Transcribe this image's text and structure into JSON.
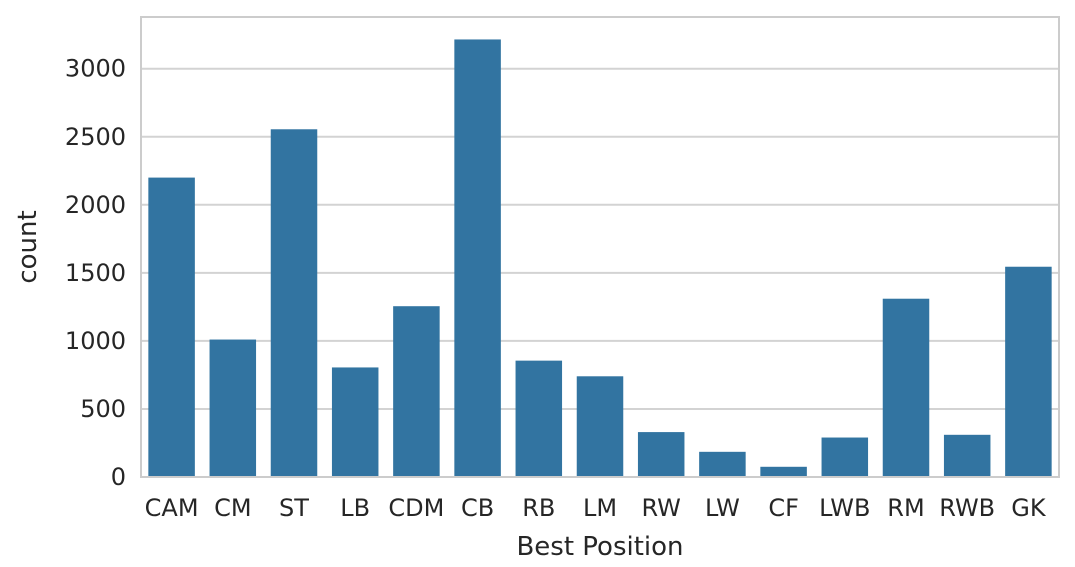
{
  "chart_data": {
    "type": "bar",
    "xlabel": "Best Position",
    "ylabel": "count",
    "categories": [
      "CAM",
      "CM",
      "ST",
      "LB",
      "CDM",
      "CB",
      "RB",
      "LM",
      "RW",
      "LW",
      "CF",
      "LWB",
      "RM",
      "RWB",
      "GK"
    ],
    "values": [
      2200,
      1010,
      2555,
      805,
      1255,
      3215,
      855,
      740,
      330,
      185,
      75,
      290,
      1310,
      310,
      1545
    ],
    "ylim": [
      0,
      3380
    ],
    "yticks": [
      0,
      500,
      1000,
      1500,
      2000,
      2500,
      3000
    ],
    "grid": true,
    "legend": "none",
    "bar_color": "#3274a1",
    "grid_color": "#d3d3d3",
    "frame_color": "#cccccc"
  }
}
